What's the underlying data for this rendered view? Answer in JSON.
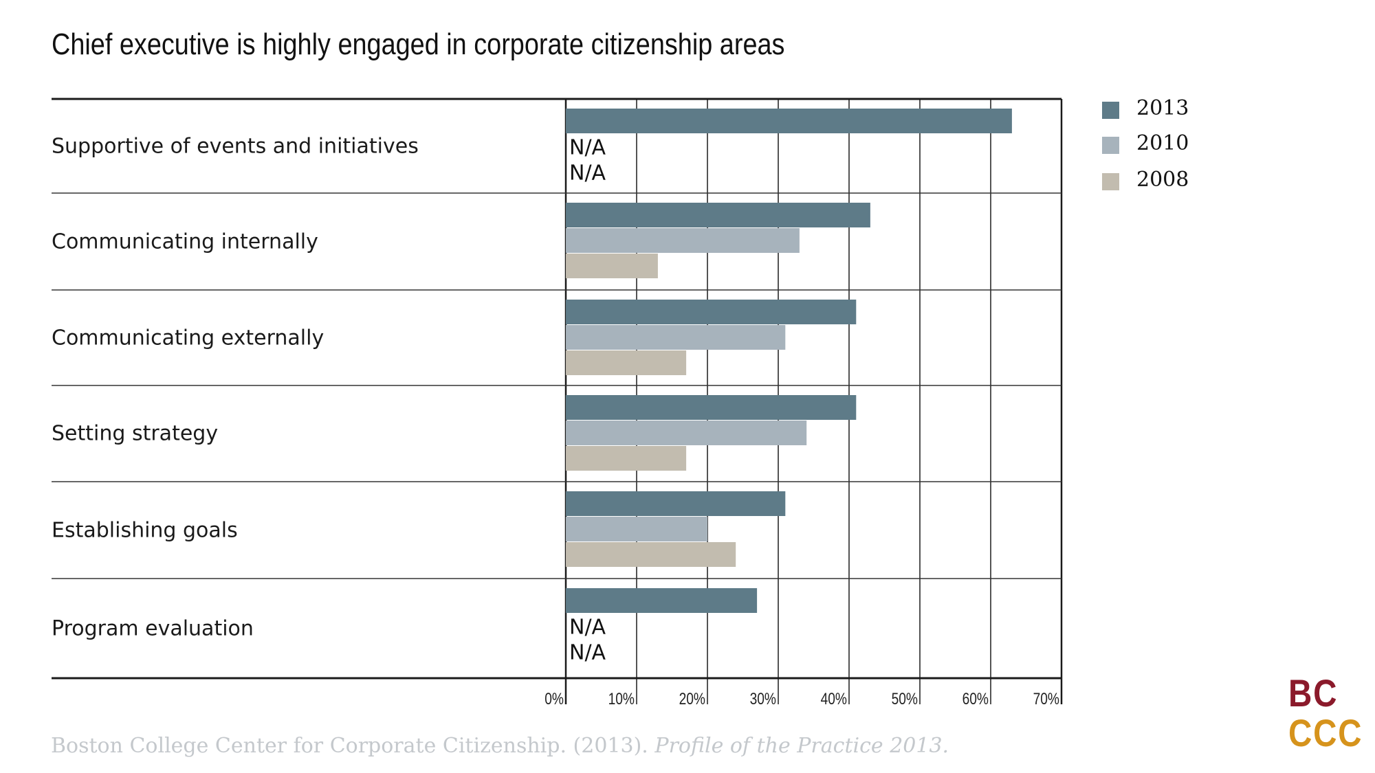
{
  "chart_data": {
    "type": "bar",
    "orientation": "horizontal",
    "title": "Chief executive is highly engaged in corporate citizenship areas",
    "categories": [
      "Supportive of events and initiatives",
      "Communicating internally",
      "Communicating externally",
      "Setting strategy",
      "Establishing goals",
      "Program evaluation"
    ],
    "series": [
      {
        "name": "2013",
        "color": "#5e7b88",
        "values": [
          63,
          43,
          41,
          41,
          31,
          27
        ]
      },
      {
        "name": "2010",
        "color": "#a7b3bc",
        "values": [
          null,
          33,
          31,
          34,
          20,
          null
        ]
      },
      {
        "name": "2008",
        "color": "#c2bcaf",
        "values": [
          null,
          13,
          17,
          17,
          24,
          null
        ]
      }
    ],
    "missing_label": "N/A",
    "xlim": [
      0,
      70
    ],
    "x_ticks": [
      "0%",
      "10%",
      "20%",
      "30%",
      "40%",
      "50%",
      "60%",
      "70%"
    ],
    "xlabel": "",
    "ylabel": "",
    "grid": true,
    "legend_position": "top-right"
  },
  "source": {
    "text": "Boston College Center for Corporate Citizenship. (2013). ",
    "italic": "Profile of the Practice 2013."
  },
  "logo": {
    "line1": "BC",
    "line2": "CCC",
    "color1": "#8b1a2b",
    "color2": "#d6931c"
  }
}
